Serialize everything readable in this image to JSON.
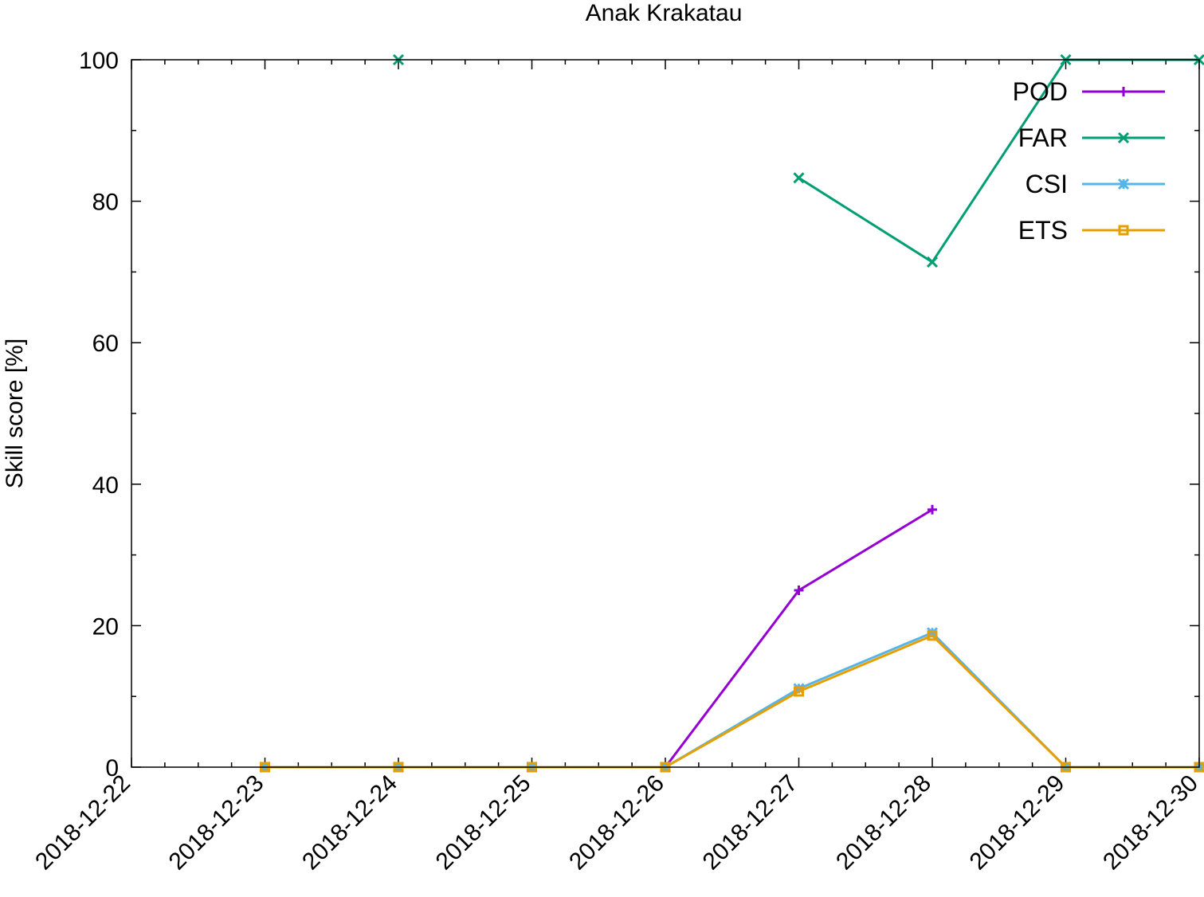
{
  "chart_data": {
    "type": "line",
    "title": "Anak Krakatau",
    "xlabel": "",
    "ylabel": "Skill score [%]",
    "x": [
      "2018-12-22",
      "2018-12-23",
      "2018-12-24",
      "2018-12-25",
      "2018-12-26",
      "2018-12-27",
      "2018-12-28",
      "2018-12-29",
      "2018-12-30"
    ],
    "ylim": [
      0,
      100
    ],
    "yticks": [
      0,
      20,
      40,
      60,
      80,
      100
    ],
    "grid": false,
    "legend_position": "top-right",
    "series": [
      {
        "name": "POD",
        "color": "#9400d3",
        "marker": "plus",
        "values": [
          null,
          0,
          null,
          0,
          0,
          25,
          36.4,
          null,
          null
        ]
      },
      {
        "name": "FAR",
        "color": "#009e73",
        "marker": "cross",
        "values": [
          null,
          null,
          100,
          null,
          null,
          83.3,
          71.4,
          100,
          100
        ]
      },
      {
        "name": "CSI",
        "color": "#56b4e9",
        "marker": "star",
        "values": [
          null,
          0,
          0,
          0,
          0,
          11.1,
          19.0,
          0,
          0
        ]
      },
      {
        "name": "ETS",
        "color": "#e69f00",
        "marker": "square",
        "values": [
          null,
          0,
          0,
          0,
          0,
          10.7,
          18.6,
          0,
          0
        ]
      }
    ]
  }
}
